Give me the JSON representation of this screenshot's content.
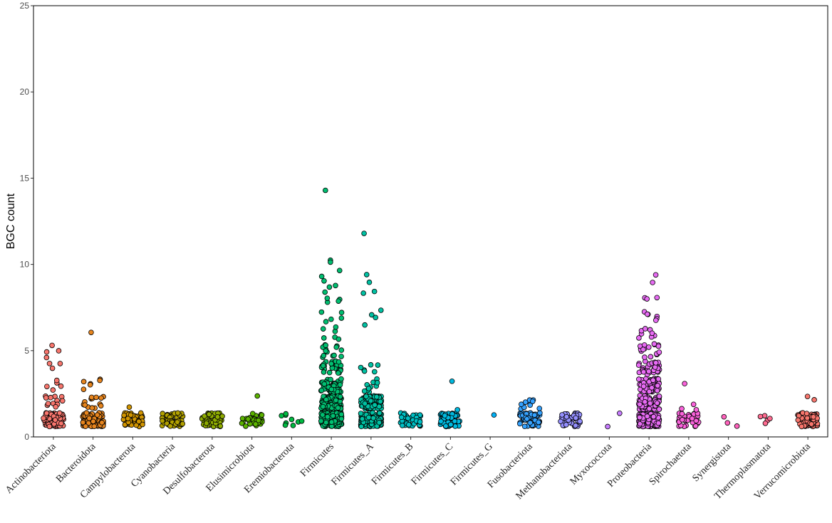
{
  "chart_data": {
    "type": "scatter",
    "subtype": "jitter-strip",
    "title": "",
    "xlabel": "",
    "ylabel": "BGC count",
    "ylim": [
      0,
      25
    ],
    "y_ticks": [
      0,
      5,
      10,
      15,
      20,
      25
    ],
    "grid": false,
    "legend": "none",
    "categories": [
      "Actinobacteriota",
      "Bacteroidota",
      "Campylobacterota",
      "Cyanobacteria",
      "Desulfobacterota",
      "Elusimicrobiota",
      "Eremiobacterota",
      "Firmicutes",
      "Firmicutes_A",
      "Firmicutes_B",
      "Firmicutes_C",
      "Firmicutes_G",
      "Fusobacteriota",
      "Methanobacteriota",
      "Myxococcota",
      "Proteobacteria",
      "Spirochaetota",
      "Synergistota",
      "Thermoplasmatota",
      "Verrucomicrobiota"
    ],
    "colors": [
      "#F8766D",
      "#E7851E",
      "#D09400",
      "#B2A100",
      "#8EAB00",
      "#5BB300",
      "#00BA42",
      "#00BE70",
      "#00C1A3",
      "#00BFC4",
      "#00BAE0",
      "#00B0F6",
      "#35A2FF",
      "#9590FF",
      "#C77CFF",
      "#E76BF3",
      "#FA62DB",
      "#FF62BC",
      "#FF6C91",
      "#F8766D"
    ],
    "series": [
      {
        "category": "Actinobacteriota",
        "levels": [
          [
            1,
            90
          ],
          [
            2,
            12
          ],
          [
            3,
            5
          ],
          [
            4,
            3
          ],
          [
            5,
            4
          ]
        ]
      },
      {
        "category": "Bacteroidota",
        "levels": [
          [
            1,
            90
          ],
          [
            2,
            14
          ],
          [
            3,
            6
          ],
          [
            6.3,
            1
          ]
        ]
      },
      {
        "category": "Campylobacterota",
        "levels": [
          [
            1,
            50
          ],
          [
            2,
            1
          ]
        ]
      },
      {
        "category": "Cyanobacteria",
        "levels": [
          [
            1,
            55
          ]
        ]
      },
      {
        "category": "Desulfobacterota",
        "levels": [
          [
            1,
            60
          ]
        ]
      },
      {
        "category": "Elusimicrobiota",
        "levels": [
          [
            1,
            30
          ],
          [
            2.2,
            1
          ]
        ]
      },
      {
        "category": "Eremiobacterota",
        "levels": [
          [
            1,
            9
          ]
        ]
      },
      {
        "category": "Firmicutes",
        "levels": [
          [
            1,
            200
          ],
          [
            2,
            120
          ],
          [
            3,
            60
          ],
          [
            4,
            30
          ],
          [
            5,
            14
          ],
          [
            6,
            6
          ],
          [
            7,
            5
          ],
          [
            8,
            5
          ],
          [
            9,
            4
          ],
          [
            10,
            3
          ],
          [
            13.9,
            1
          ]
        ]
      },
      {
        "category": "Firmicutes_A",
        "levels": [
          [
            1,
            160
          ],
          [
            2,
            80
          ],
          [
            3,
            10
          ],
          [
            4,
            6
          ],
          [
            6.6,
            1
          ],
          [
            7,
            3
          ],
          [
            8.6,
            3
          ],
          [
            9.3,
            1
          ],
          [
            11.8,
            1
          ]
        ]
      },
      {
        "category": "Firmicutes_B",
        "levels": [
          [
            1,
            45
          ]
        ]
      },
      {
        "category": "Firmicutes_C",
        "levels": [
          [
            1,
            80
          ],
          [
            1.9,
            1
          ],
          [
            2.9,
            1
          ]
        ]
      },
      {
        "category": "Firmicutes_G",
        "levels": [
          [
            1,
            1
          ]
        ]
      },
      {
        "category": "Fusobacteriota",
        "levels": [
          [
            1,
            60
          ],
          [
            2,
            10
          ]
        ]
      },
      {
        "category": "Methanobacteriota",
        "levels": [
          [
            1,
            50
          ]
        ]
      },
      {
        "category": "Myxococcota",
        "levels": [
          [
            1,
            2
          ]
        ]
      },
      {
        "category": "Proteobacteria",
        "levels": [
          [
            1,
            200
          ],
          [
            2,
            100
          ],
          [
            3,
            60
          ],
          [
            4,
            35
          ],
          [
            5,
            18
          ],
          [
            6,
            8
          ],
          [
            7,
            6
          ],
          [
            8,
            3
          ],
          [
            9,
            2
          ]
        ]
      },
      {
        "category": "Spirochaetota",
        "levels": [
          [
            1,
            40
          ],
          [
            1.8,
            2
          ],
          [
            2.2,
            1
          ],
          [
            2.8,
            1
          ]
        ]
      },
      {
        "category": "Synergistota",
        "levels": [
          [
            1,
            3
          ]
        ]
      },
      {
        "category": "Thermoplasmatota",
        "levels": [
          [
            1,
            5
          ]
        ]
      },
      {
        "category": "Verrucomicrobiota",
        "levels": [
          [
            1,
            80
          ],
          [
            2.2,
            2
          ]
        ]
      }
    ]
  }
}
